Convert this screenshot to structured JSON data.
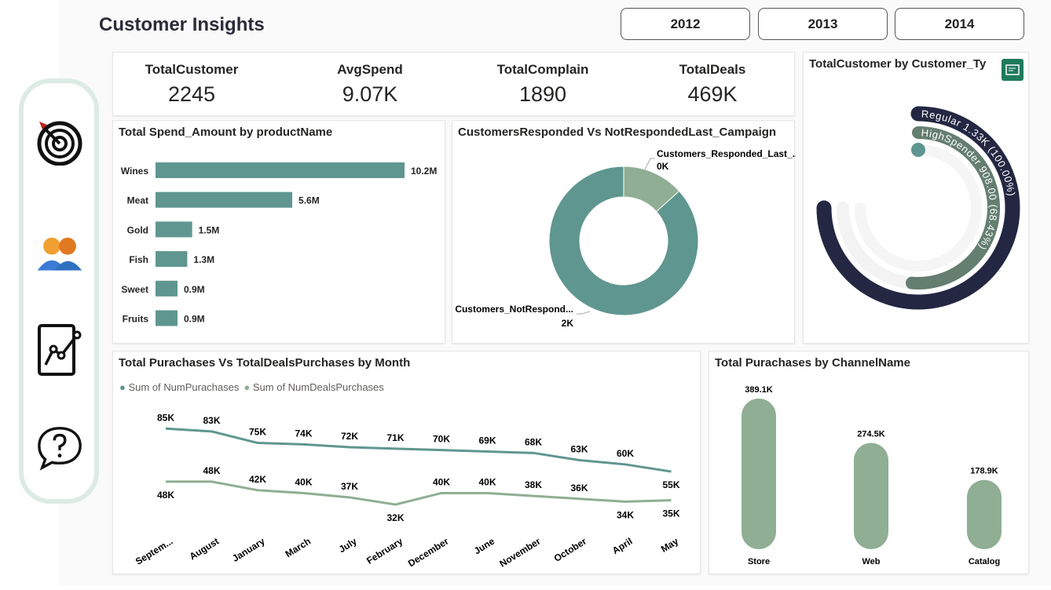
{
  "header": {
    "title": "Customer Insights",
    "years": [
      "2012",
      "2013",
      "2014"
    ]
  },
  "sidebar": {
    "icons": [
      "target-icon",
      "users-icon",
      "chart-report-icon",
      "help-icon"
    ]
  },
  "kpis": [
    {
      "label": "TotalCustomer",
      "value": "2245"
    },
    {
      "label": "AvgSpend",
      "value": "9.07K"
    },
    {
      "label": "TotalComplain",
      "value": "1890"
    },
    {
      "label": "TotalDeals",
      "value": "469K"
    }
  ],
  "colors": {
    "teal": "#5f9690",
    "sage": "#8fae93",
    "navy": "#232742",
    "ring_gray": "#647e70"
  },
  "chart_data": [
    {
      "type": "bar",
      "orientation": "horizontal",
      "title": "Total Spend_Amount by productName",
      "categories": [
        "Wines",
        "Meat",
        "Gold",
        "Fish",
        "Sweet",
        "Fruits"
      ],
      "values": [
        10.2,
        5.6,
        1.5,
        1.3,
        0.9,
        0.9
      ],
      "labels": [
        "10.2M",
        "5.6M",
        "1.5M",
        "1.3M",
        "0.9M",
        "0.9M"
      ],
      "unit": "M"
    },
    {
      "type": "pie",
      "donut": true,
      "title": "CustomersResponded Vs NotRespondedLast_Campaign",
      "slices": [
        {
          "name": "Customers_Responded_Last_...",
          "label": "0K",
          "value": 300
        },
        {
          "name": "Customers_NotRespond...",
          "label": "2K",
          "value": 1945
        }
      ]
    },
    {
      "type": "radial_bar",
      "title": "TotalCustomer by Customer_Ty",
      "series": [
        {
          "name": "Regular",
          "label": "Regular 1.33K (100.00%)",
          "value": 1330,
          "percent": 100
        },
        {
          "name": "HighSpender",
          "label": "HighSpender 908.00 (68.43%)",
          "value": 908,
          "percent": 68.43
        }
      ]
    },
    {
      "type": "line",
      "title": "Total Purachases Vs TotalDealsPurchases by Month",
      "categories": [
        "Septem...",
        "August",
        "January",
        "March",
        "July",
        "February",
        "December",
        "June",
        "November",
        "October",
        "April",
        "May"
      ],
      "series": [
        {
          "name": "Sum of NumPurachases",
          "values": [
            85,
            83,
            75,
            74,
            72,
            71,
            70,
            69,
            68,
            63,
            60,
            55
          ],
          "labels": [
            "85K",
            "83K",
            "75K",
            "74K",
            "72K",
            "71K",
            "70K",
            "69K",
            "68K",
            "63K",
            "60K",
            "55K"
          ]
        },
        {
          "name": "Sum of NumDealsPurchases",
          "values": [
            48,
            48,
            42,
            40,
            37,
            32,
            40,
            40,
            38,
            36,
            34,
            35
          ],
          "labels": [
            "48K",
            "48K",
            "42K",
            "40K",
            "37K",
            "32K",
            "40K",
            "40K",
            "38K",
            "36K",
            "34K",
            "35K"
          ]
        }
      ],
      "unit": "K",
      "ylim": [
        20,
        95
      ],
      "legend": "top-left"
    },
    {
      "type": "bar",
      "title": "Total Purachases by ChannelName",
      "categories": [
        "Store",
        "Web",
        "Catalog"
      ],
      "values": [
        389.1,
        274.5,
        178.9
      ],
      "labels": [
        "389.1K",
        "274.5K",
        "178.9K"
      ],
      "unit": "K"
    }
  ]
}
